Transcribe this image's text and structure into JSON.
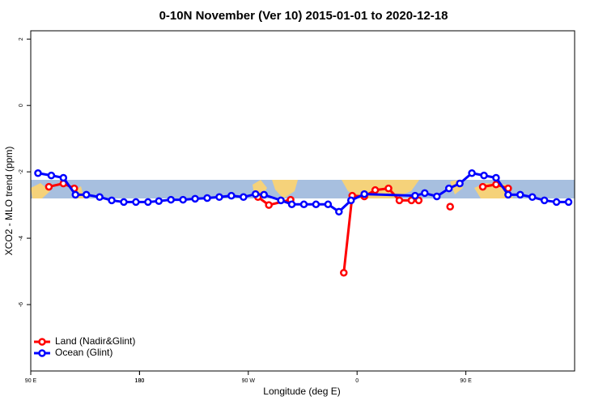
{
  "chart_data": {
    "type": "line",
    "title": "0-10N November (Ver 10)   2015-01-01 to 2020-12-18",
    "x_label": "Longitude (deg E)",
    "y_label": "XCO2 - MLO trend (ppm)",
    "xlim": [
      90,
      540
    ],
    "ylim": [
      -8,
      2.25
    ],
    "xticks": [
      {
        "value": 90,
        "label": "90 E"
      },
      180,
      {
        "value": 270,
        "label": "90 W"
      },
      {
        "value": 360,
        "label": "0"
      },
      {
        "value": 450,
        "label": "90 E"
      },
      180
    ],
    "yticks": [
      2,
      0,
      -2,
      -4,
      -6
    ],
    "legend": "bottom-left",
    "series": [
      {
        "name": "Land (Nadir&Glint)",
        "color": "#ff0000",
        "x": [
          105,
          117,
          126,
          null,
          278,
          287,
          305,
          null,
          349,
          356,
          366,
          375,
          386,
          395,
          405,
          411,
          null,
          437,
          null,
          464,
          475,
          485
        ],
        "values": [
          -2.45,
          -2.35,
          -2.5,
          null,
          -2.76,
          -3.0,
          -2.84,
          null,
          -5.04,
          -2.72,
          -2.74,
          -2.55,
          -2.5,
          -2.86,
          -2.86,
          -2.86,
          null,
          -3.05,
          null,
          -2.45,
          -2.38,
          -2.5
        ]
      },
      {
        "name": "Ocean (Glint)",
        "color": "#0000ff",
        "x": [
          96,
          107,
          117,
          127,
          136,
          147,
          157,
          167,
          177,
          187,
          196,
          206,
          216,
          226,
          236,
          246,
          256,
          266,
          276,
          283,
          297,
          306,
          316,
          326,
          336,
          345,
          355,
          366,
          408,
          416,
          426,
          436,
          445,
          455,
          465,
          475,
          485,
          495,
          505,
          515,
          525,
          535
        ],
        "values": [
          -2.04,
          -2.11,
          -2.18,
          -2.69,
          -2.69,
          -2.76,
          -2.86,
          -2.91,
          -2.91,
          -2.91,
          -2.88,
          -2.84,
          -2.84,
          -2.81,
          -2.79,
          -2.76,
          -2.72,
          -2.76,
          -2.67,
          -2.69,
          -2.86,
          -2.98,
          -2.98,
          -2.98,
          -2.98,
          -3.2,
          -2.86,
          -2.67,
          -2.72,
          -2.64,
          -2.74,
          -2.5,
          -2.35,
          -2.04,
          -2.11,
          -2.18,
          -2.69,
          -2.69,
          -2.76,
          -2.86,
          -2.91,
          -2.91
        ]
      }
    ]
  }
}
